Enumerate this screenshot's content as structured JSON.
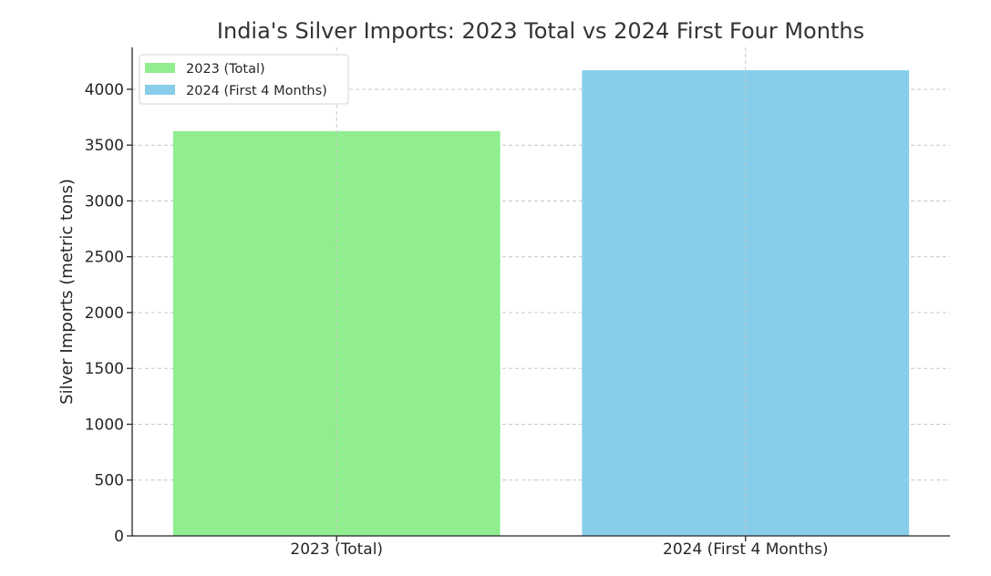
{
  "chart_data": {
    "type": "bar",
    "title": "India's Silver Imports: 2023 Total vs 2024 First Four Months",
    "xlabel": "",
    "ylabel": "Silver Imports (metric tons)",
    "categories": [
      "2023 (Total)",
      "2024 (First 4 Months)"
    ],
    "values": [
      3625,
      4170
    ],
    "colors": [
      "#90ee90",
      "#87ceeb"
    ],
    "ylim": [
      0,
      4375
    ],
    "yticks": [
      0,
      500,
      1000,
      1500,
      2000,
      2500,
      3000,
      3500,
      4000
    ],
    "grid": true,
    "legend": {
      "placement": "top-left",
      "entries": [
        {
          "label": "2023 (Total)",
          "color": "#90ee90"
        },
        {
          "label": "2024 (First 4 Months)",
          "color": "#87ceeb"
        }
      ]
    }
  }
}
